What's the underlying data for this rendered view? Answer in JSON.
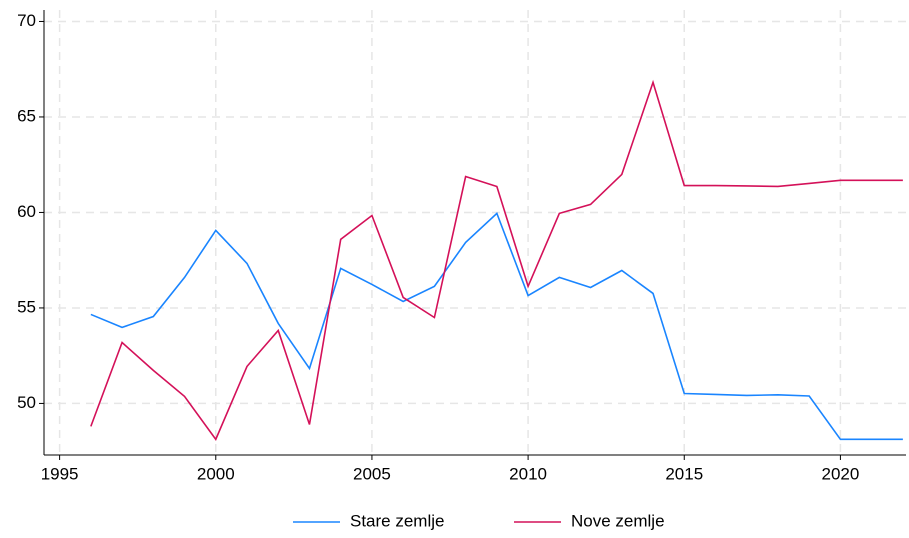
{
  "chart_data": {
    "type": "line",
    "x": [
      1996,
      1997,
      1998,
      1999,
      2000,
      2001,
      2002,
      2003,
      2004,
      2005,
      2006,
      2007,
      2008,
      2009,
      2010,
      2011,
      2012,
      2013,
      2014,
      2015,
      2016,
      2017,
      2018,
      2019,
      2020,
      2021,
      2022
    ],
    "series": [
      {
        "name": "Stare zemlje",
        "color": "#1a85ff",
        "values": [
          54.66,
          53.98,
          54.55,
          56.6,
          59.06,
          57.33,
          54.19,
          51.83,
          57.07,
          56.23,
          55.34,
          56.13,
          58.43,
          59.95,
          55.65,
          56.6,
          56.07,
          56.96,
          55.76,
          50.52,
          50.47,
          50.42,
          50.45,
          50.39,
          48.12,
          48.12,
          48.12
        ]
      },
      {
        "name": "Nove zemlje",
        "color": "#d41159",
        "values": [
          48.8,
          53.19,
          51.73,
          50.37,
          48.12,
          51.94,
          53.82,
          48.9,
          58.59,
          59.84,
          55.55,
          54.5,
          61.88,
          61.36,
          56.13,
          59.95,
          60.42,
          61.99,
          66.81,
          61.41,
          61.41,
          61.39,
          61.36,
          61.52,
          61.68,
          61.68,
          61.68
        ]
      }
    ],
    "xlim": [
      1994.5,
      2022.1
    ],
    "xticks": [
      1995,
      2000,
      2005,
      2010,
      2015,
      2020
    ],
    "ylim": [
      47.3,
      70.6
    ],
    "yticks": [
      50,
      55,
      60,
      65,
      70
    ],
    "grid": true,
    "legend": "bottom"
  }
}
